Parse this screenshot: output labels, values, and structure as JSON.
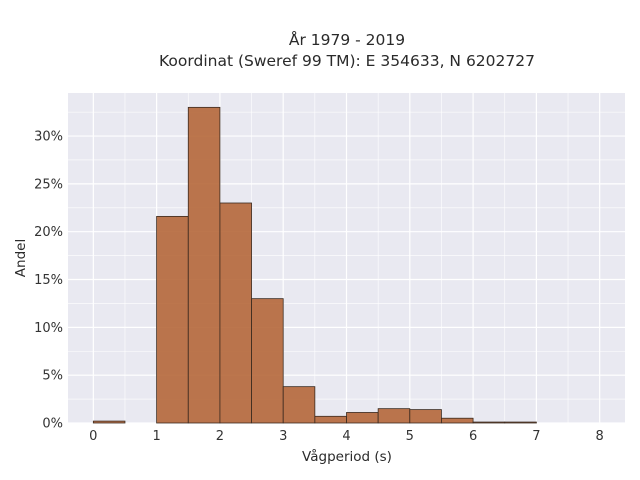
{
  "chart_data": {
    "type": "bar",
    "title": [
      "År 1979 - 2019",
      "Koordinat (Sweref 99 TM): E 354633, N 6202727"
    ],
    "xlabel": "Vågperiod (s)",
    "ylabel": "Andel",
    "xlim": [
      -0.4,
      8.4
    ],
    "ylim": [
      0,
      0.345
    ],
    "x_ticks": [
      0,
      1,
      2,
      3,
      4,
      5,
      6,
      7,
      8
    ],
    "x_tick_labels": [
      "0",
      "1",
      "2",
      "3",
      "4",
      "5",
      "6",
      "7",
      "8"
    ],
    "y_ticks": [
      0,
      0.05,
      0.1,
      0.15,
      0.2,
      0.25,
      0.3
    ],
    "y_tick_labels": [
      "0%",
      "5%",
      "10%",
      "15%",
      "20%",
      "25%",
      "30%"
    ],
    "bin_width": 0.5,
    "bins": [
      {
        "x0": 0.0,
        "x1": 0.5,
        "value": 0.002
      },
      {
        "x0": 0.5,
        "x1": 1.0,
        "value": 0.0
      },
      {
        "x0": 1.0,
        "x1": 1.5,
        "value": 0.216
      },
      {
        "x0": 1.5,
        "x1": 2.0,
        "value": 0.33
      },
      {
        "x0": 2.0,
        "x1": 2.5,
        "value": 0.23
      },
      {
        "x0": 2.5,
        "x1": 3.0,
        "value": 0.13
      },
      {
        "x0": 3.0,
        "x1": 3.5,
        "value": 0.038
      },
      {
        "x0": 3.5,
        "x1": 4.0,
        "value": 0.007
      },
      {
        "x0": 4.0,
        "x1": 4.5,
        "value": 0.011
      },
      {
        "x0": 4.5,
        "x1": 5.0,
        "value": 0.015
      },
      {
        "x0": 5.0,
        "x1": 5.5,
        "value": 0.014
      },
      {
        "x0": 5.5,
        "x1": 6.0,
        "value": 0.005
      },
      {
        "x0": 6.0,
        "x1": 6.5,
        "value": 0.001
      },
      {
        "x0": 6.5,
        "x1": 7.0,
        "value": 0.001
      }
    ],
    "grid": true,
    "bar_color": "#b5673a",
    "bar_edge_color": "#3a2a20",
    "plot_background": "#e9e9f1",
    "grid_color": "#ffffff"
  }
}
